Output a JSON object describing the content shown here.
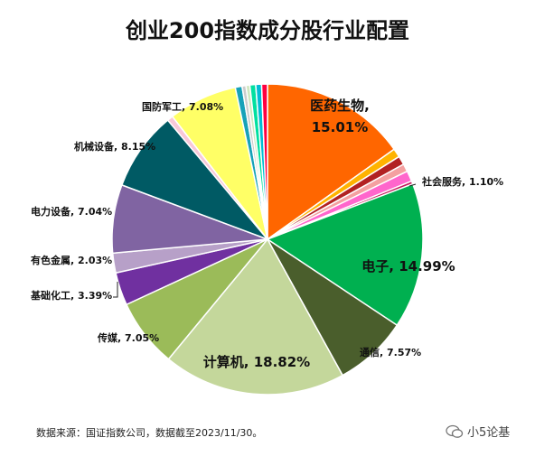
{
  "chart_data": {
    "type": "pie",
    "title": "创业200指数成分股行业配置",
    "slices": [
      {
        "name": "医药生物",
        "label": "医药生物,",
        "value_label": "15.01%",
        "value": 15.01,
        "color": "#ff6600"
      },
      {
        "name": "",
        "label": "",
        "value_label": "",
        "value": 0.9,
        "color": "#ffb300"
      },
      {
        "name": "",
        "label": "",
        "value_label": "",
        "value": 0.9,
        "color": "#b22222"
      },
      {
        "name": "",
        "label": "",
        "value_label": "",
        "value": 0.8,
        "color": "#f4a0a0"
      },
      {
        "name": "社会服务",
        "label": "社会服务, 1.10%",
        "value_label": "",
        "value": 1.1,
        "color": "#ff66cc"
      },
      {
        "name": "",
        "label": "",
        "value_label": "",
        "value": 0.3,
        "color": "#c2185b"
      },
      {
        "name": "电子",
        "label": "电子, 14.99%",
        "value_label": "",
        "value": 14.99,
        "color": "#00b050"
      },
      {
        "name": "通信",
        "label": "通信, 7.57%",
        "value_label": "",
        "value": 7.57,
        "color": "#4a5e2c"
      },
      {
        "name": "计算机",
        "label": "计算机, 18.82%",
        "value_label": "",
        "value": 18.82,
        "color": "#c4d79b"
      },
      {
        "name": "传媒",
        "label": "传媒, 7.05%",
        "value_label": "",
        "value": 7.05,
        "color": "#9bbb59"
      },
      {
        "name": "基础化工",
        "label": "基础化工, 3.39%",
        "value_label": "",
        "value": 3.39,
        "color": "#7030a0"
      },
      {
        "name": "有色金属",
        "label": "有色金属, 2.03%",
        "value_label": "",
        "value": 2.03,
        "color": "#b7a0c8"
      },
      {
        "name": "电力设备",
        "label": "电力设备, 7.04%",
        "value_label": "",
        "value": 7.04,
        "color": "#8064a2"
      },
      {
        "name": "机械设备",
        "label": "机械设备, 8.15%",
        "value_label": "",
        "value": 8.15,
        "color": "#005a64"
      },
      {
        "name": "",
        "label": "",
        "value_label": "",
        "value": 0.6,
        "color": "#f8c8d8"
      },
      {
        "name": "国防军工",
        "label": "国防军工, 7.08%",
        "value_label": "",
        "value": 7.08,
        "color": "#ffff66"
      },
      {
        "name": "",
        "label": "",
        "value_label": "",
        "value": 0.7,
        "color": "#17a2b8"
      },
      {
        "name": "",
        "label": "",
        "value_label": "",
        "value": 0.4,
        "color": "#cccccc"
      },
      {
        "name": "",
        "label": "",
        "value_label": "",
        "value": 0.4,
        "color": "#d0e8c0"
      },
      {
        "name": "",
        "label": "",
        "value_label": "",
        "value": 0.6,
        "color": "#00e0a0"
      },
      {
        "name": "",
        "label": "",
        "value_label": "",
        "value": 0.6,
        "color": "#00bcd4"
      },
      {
        "name": "",
        "label": "",
        "value_label": "",
        "value": 0.6,
        "color": "#ff0040"
      }
    ]
  },
  "footer": {
    "source": "数据来源：国证指数公司，数据截至2023/11/30。",
    "watermark": "小5论基"
  }
}
